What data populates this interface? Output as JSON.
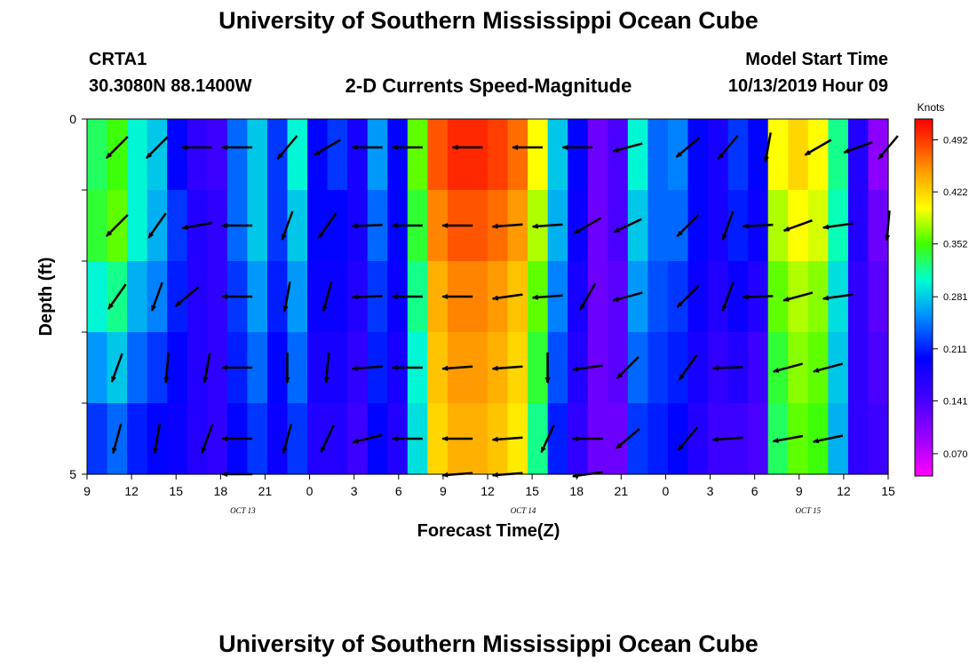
{
  "header": {
    "title_top": "University of Southern Mississippi Ocean Cube",
    "title_bottom": "University of Southern Mississippi Ocean Cube",
    "station_id": "CRTA1",
    "station_coords": "30.3080N 88.1400W",
    "plot_title": "2-D Currents Speed-Magnitude",
    "model_start_label": "Model Start Time",
    "model_start_value": "10/13/2019 Hour 09"
  },
  "chart_data": {
    "type": "heatmap",
    "title": "2-D Currents Speed-Magnitude",
    "xlabel": "Forecast Time(Z)",
    "ylabel": "Depth (ft)",
    "x_tick_labels": [
      "9",
      "12",
      "15",
      "18",
      "21",
      "0",
      "3",
      "6",
      "9",
      "12",
      "15",
      "18",
      "21",
      "0",
      "3",
      "6",
      "9",
      "12",
      "15"
    ],
    "date_labels": [
      "OCT 13",
      "OCT 14",
      "OCT 15"
    ],
    "y_tick_labels": [
      "0",
      "5"
    ],
    "ylim": [
      0,
      5
    ],
    "colorbar": {
      "units": "Knots",
      "tick_labels": [
        "0.492",
        "0.422",
        "0.352",
        "0.281",
        "0.211",
        "0.141",
        "0.070"
      ],
      "range": [
        0.04,
        0.52
      ]
    },
    "depth_rows": 5,
    "speed_knots": [
      [
        0.33,
        0.35,
        0.3,
        0.28,
        0.2,
        0.16,
        0.15,
        0.24,
        0.28,
        0.22,
        0.3,
        0.2,
        0.22,
        0.18,
        0.26,
        0.2,
        0.36,
        0.48,
        0.5,
        0.5,
        0.49,
        0.47,
        0.4,
        0.28,
        0.2,
        0.12,
        0.14,
        0.3,
        0.24,
        0.25,
        0.2,
        0.18,
        0.22,
        0.2,
        0.4,
        0.42,
        0.4,
        0.32,
        0.17,
        0.1
      ],
      [
        0.34,
        0.36,
        0.3,
        0.27,
        0.22,
        0.17,
        0.16,
        0.24,
        0.28,
        0.22,
        0.28,
        0.2,
        0.2,
        0.18,
        0.24,
        0.2,
        0.34,
        0.46,
        0.48,
        0.48,
        0.47,
        0.45,
        0.38,
        0.27,
        0.19,
        0.12,
        0.14,
        0.28,
        0.24,
        0.24,
        0.2,
        0.18,
        0.21,
        0.19,
        0.38,
        0.4,
        0.39,
        0.31,
        0.17,
        0.12
      ],
      [
        0.3,
        0.32,
        0.27,
        0.25,
        0.21,
        0.17,
        0.16,
        0.22,
        0.26,
        0.21,
        0.26,
        0.19,
        0.19,
        0.17,
        0.22,
        0.19,
        0.32,
        0.44,
        0.46,
        0.46,
        0.45,
        0.43,
        0.36,
        0.25,
        0.18,
        0.12,
        0.13,
        0.26,
        0.23,
        0.22,
        0.19,
        0.17,
        0.19,
        0.17,
        0.36,
        0.38,
        0.37,
        0.29,
        0.16,
        0.13
      ],
      [
        0.26,
        0.28,
        0.24,
        0.22,
        0.2,
        0.17,
        0.16,
        0.21,
        0.24,
        0.2,
        0.24,
        0.18,
        0.18,
        0.16,
        0.21,
        0.18,
        0.3,
        0.43,
        0.45,
        0.45,
        0.44,
        0.42,
        0.34,
        0.23,
        0.17,
        0.12,
        0.13,
        0.24,
        0.22,
        0.21,
        0.18,
        0.16,
        0.17,
        0.15,
        0.34,
        0.37,
        0.36,
        0.28,
        0.16,
        0.14
      ],
      [
        0.22,
        0.24,
        0.21,
        0.2,
        0.19,
        0.17,
        0.16,
        0.2,
        0.22,
        0.19,
        0.22,
        0.17,
        0.17,
        0.15,
        0.2,
        0.17,
        0.29,
        0.42,
        0.44,
        0.44,
        0.43,
        0.41,
        0.32,
        0.21,
        0.16,
        0.12,
        0.12,
        0.22,
        0.21,
        0.2,
        0.17,
        0.15,
        0.15,
        0.14,
        0.33,
        0.36,
        0.35,
        0.27,
        0.16,
        0.15
      ]
    ],
    "vectors": [
      [
        {
          "x": 1.5,
          "a": -135
        },
        {
          "x": 3.5,
          "a": -135
        },
        {
          "x": 5.5,
          "a": 180
        },
        {
          "x": 7.5,
          "a": 180
        },
        {
          "x": 10,
          "a": -130
        },
        {
          "x": 12,
          "a": -150
        },
        {
          "x": 14,
          "a": 180
        },
        {
          "x": 16,
          "a": 180
        },
        {
          "x": 19,
          "a": 180
        },
        {
          "x": 22,
          "a": 180
        },
        {
          "x": 24.5,
          "a": 180
        },
        {
          "x": 27,
          "a": -165
        },
        {
          "x": 30,
          "a": -140
        },
        {
          "x": 32,
          "a": -130
        },
        {
          "x": 34,
          "a": -100
        },
        {
          "x": 36.5,
          "a": -150
        },
        {
          "x": 38.5,
          "a": -160
        },
        {
          "x": 40,
          "a": -130
        }
      ],
      [
        {
          "x": 1.5,
          "a": -135
        },
        {
          "x": 3.5,
          "a": -125
        },
        {
          "x": 5.5,
          "a": -170
        },
        {
          "x": 7.5,
          "a": 180
        },
        {
          "x": 10,
          "a": -110
        },
        {
          "x": 12,
          "a": -125
        },
        {
          "x": 14,
          "a": -178
        },
        {
          "x": 16,
          "a": 180
        },
        {
          "x": 18.5,
          "a": 180
        },
        {
          "x": 21,
          "a": -176
        },
        {
          "x": 23,
          "a": -176
        },
        {
          "x": 25,
          "a": -150
        },
        {
          "x": 27,
          "a": -155
        },
        {
          "x": 30,
          "a": -135
        },
        {
          "x": 32,
          "a": -110
        },
        {
          "x": 33.5,
          "a": -177
        },
        {
          "x": 35.5,
          "a": -160
        },
        {
          "x": 37.5,
          "a": -172
        },
        {
          "x": 40,
          "a": -95
        }
      ],
      [
        {
          "x": 1.5,
          "a": -125
        },
        {
          "x": 3.5,
          "a": -110
        },
        {
          "x": 5,
          "a": -140
        },
        {
          "x": 7.5,
          "a": 180
        },
        {
          "x": 10,
          "a": -100
        },
        {
          "x": 12,
          "a": -105
        },
        {
          "x": 14,
          "a": -178
        },
        {
          "x": 16,
          "a": 180
        },
        {
          "x": 18.5,
          "a": 180
        },
        {
          "x": 21,
          "a": -172
        },
        {
          "x": 23,
          "a": -176
        },
        {
          "x": 25,
          "a": -120
        },
        {
          "x": 27,
          "a": -165
        },
        {
          "x": 30,
          "a": -135
        },
        {
          "x": 32,
          "a": -110
        },
        {
          "x": 33.5,
          "a": -178
        },
        {
          "x": 35.5,
          "a": -165
        },
        {
          "x": 37.5,
          "a": -172
        }
      ],
      [
        {
          "x": 1.5,
          "a": -110
        },
        {
          "x": 4,
          "a": -95
        },
        {
          "x": 6,
          "a": -100
        },
        {
          "x": 7.5,
          "a": 180
        },
        {
          "x": 10,
          "a": -90
        },
        {
          "x": 12,
          "a": -95
        },
        {
          "x": 14,
          "a": -176
        },
        {
          "x": 16,
          "a": 180
        },
        {
          "x": 18.5,
          "a": -176
        },
        {
          "x": 21,
          "a": -176
        },
        {
          "x": 23,
          "a": -90
        },
        {
          "x": 25,
          "a": -172
        },
        {
          "x": 27,
          "a": -135
        },
        {
          "x": 30,
          "a": -125
        },
        {
          "x": 32,
          "a": -178
        },
        {
          "x": 35,
          "a": -165
        },
        {
          "x": 37,
          "a": -165
        }
      ],
      [
        {
          "x": 1.5,
          "a": -105
        },
        {
          "x": 3.5,
          "a": -100
        },
        {
          "x": 6,
          "a": -110
        },
        {
          "x": 7.5,
          "a": 180
        },
        {
          "x": 10,
          "a": -105
        },
        {
          "x": 12,
          "a": -115
        },
        {
          "x": 14,
          "a": -166
        },
        {
          "x": 16,
          "a": 180
        },
        {
          "x": 18.5,
          "a": 180
        },
        {
          "x": 21,
          "a": -176
        },
        {
          "x": 23,
          "a": -115
        },
        {
          "x": 25,
          "a": 180
        },
        {
          "x": 27,
          "a": -140
        },
        {
          "x": 30,
          "a": -130
        },
        {
          "x": 32,
          "a": -176
        },
        {
          "x": 35,
          "a": -170
        },
        {
          "x": 37,
          "a": -168
        }
      ]
    ],
    "edge_vectors": [
      {
        "x": 7.5,
        "a": 180
      },
      {
        "x": 18.5,
        "a": -176
      },
      {
        "x": 21,
        "a": -176
      },
      {
        "x": 25,
        "a": -172
      }
    ]
  }
}
